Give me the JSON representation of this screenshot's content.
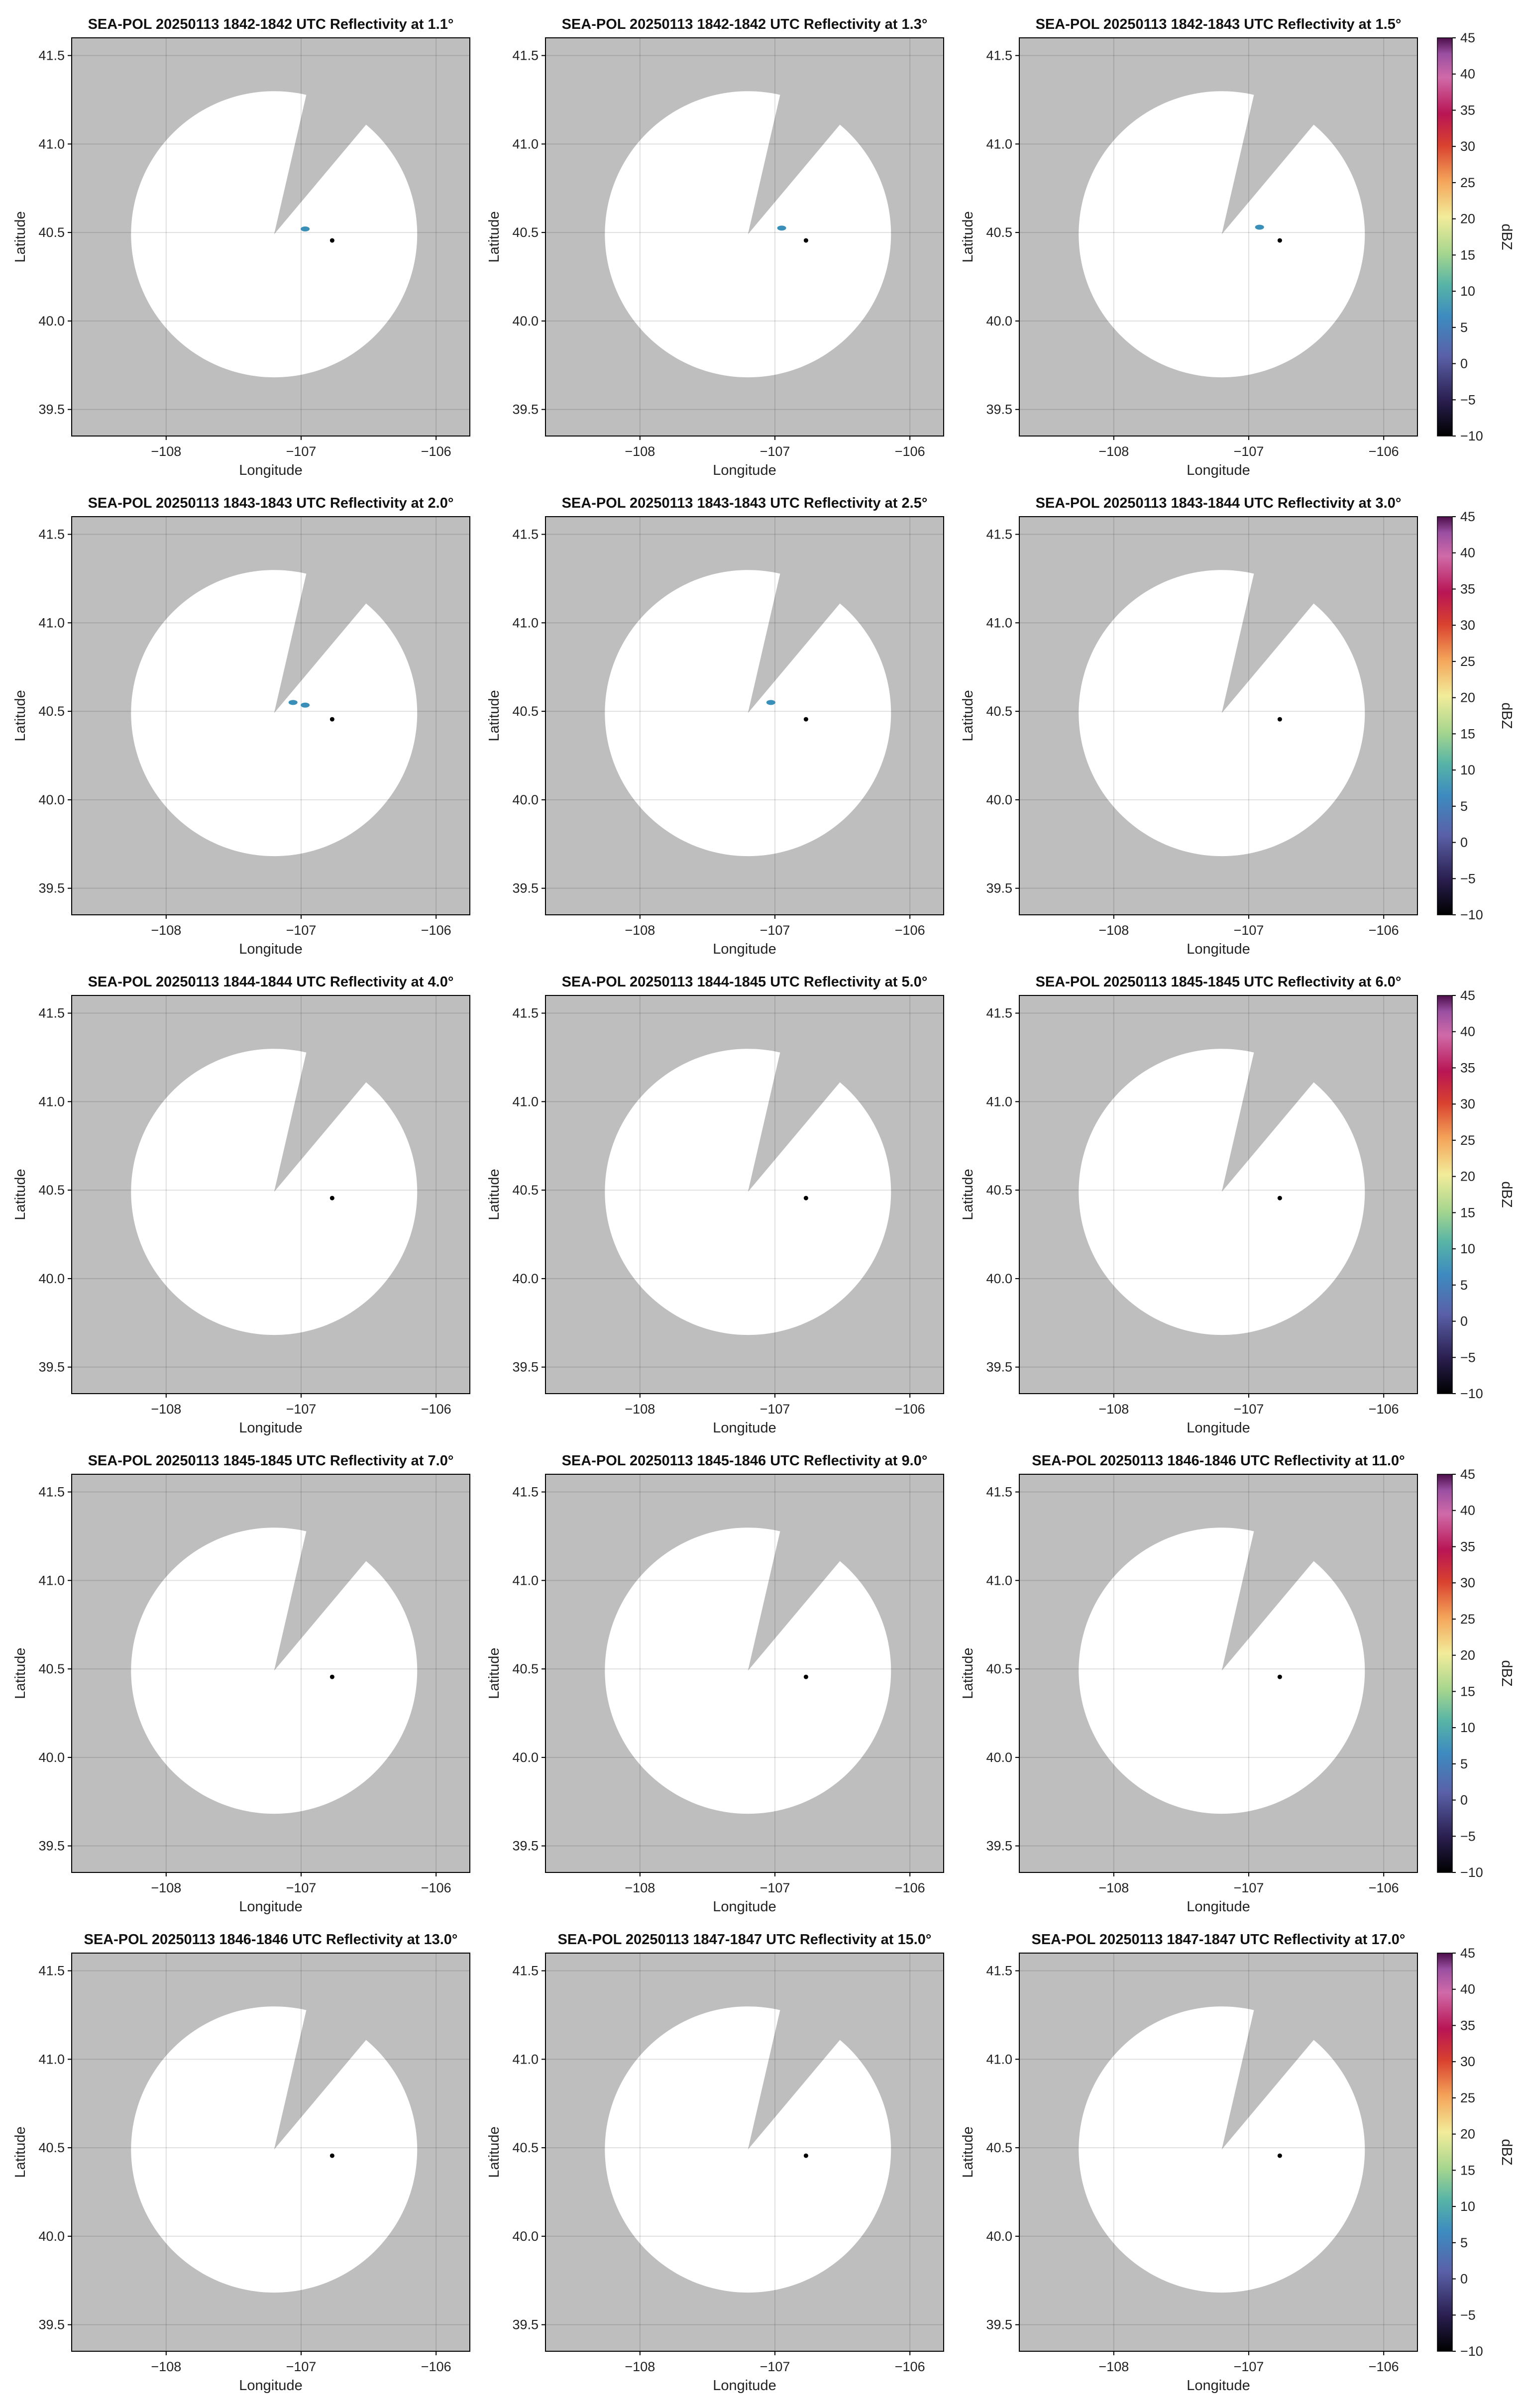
{
  "figure": {
    "panels": [
      {
        "title": "SEA-POL 20250113 1842-1842 UTC Reflectivity at 1.1°"
      },
      {
        "title": "SEA-POL 20250113 1842-1842 UTC Reflectivity at 1.3°"
      },
      {
        "title": "SEA-POL 20250113 1842-1843 UTC Reflectivity at 1.5°"
      },
      {
        "title": "SEA-POL 20250113 1843-1843 UTC Reflectivity at 2.0°"
      },
      {
        "title": "SEA-POL 20250113 1843-1843 UTC Reflectivity at 2.5°"
      },
      {
        "title": "SEA-POL 20250113 1843-1844 UTC Reflectivity at 3.0°"
      },
      {
        "title": "SEA-POL 20250113 1844-1844 UTC Reflectivity at 4.0°"
      },
      {
        "title": "SEA-POL 20250113 1844-1845 UTC Reflectivity at 5.0°"
      },
      {
        "title": "SEA-POL 20250113 1845-1845 UTC Reflectivity at 6.0°"
      },
      {
        "title": "SEA-POL 20250113 1845-1845 UTC Reflectivity at 7.0°"
      },
      {
        "title": "SEA-POL 20250113 1845-1846 UTC Reflectivity at 9.0°"
      },
      {
        "title": "SEA-POL 20250113 1846-1846 UTC Reflectivity at 11.0°"
      },
      {
        "title": "SEA-POL 20250113 1846-1846 UTC Reflectivity at 13.0°"
      },
      {
        "title": "SEA-POL 20250113 1847-1847 UTC Reflectivity at 15.0°"
      },
      {
        "title": "SEA-POL 20250113 1847-1847 UTC Reflectivity at 17.0°"
      }
    ],
    "xlabel": "Longitude",
    "ylabel": "Latitude",
    "x_ticks": [
      "−108",
      "−107",
      "−106"
    ],
    "y_ticks": [
      "39.5",
      "40.0",
      "40.5",
      "41.0",
      "41.5"
    ],
    "colorbar": {
      "label": "dBZ",
      "ticks": [
        "−10",
        "−5",
        "0",
        "5",
        "10",
        "15",
        "20",
        "25",
        "30",
        "35",
        "40",
        "45"
      ],
      "range": [
        -10,
        45
      ]
    },
    "colors": {
      "background": "#bebebe",
      "radar_coverage": "#ffffff",
      "site_marker": "#000000",
      "echo": "#3a8fb8"
    }
  },
  "chart_data": {
    "type": "heatmap",
    "xlim": [
      -108.7,
      -105.75
    ],
    "ylim": [
      39.35,
      41.6
    ],
    "x_tick_values": [
      -108,
      -107,
      -106
    ],
    "y_tick_values": [
      39.5,
      40.0,
      40.5,
      41.0,
      41.5
    ],
    "grid": true,
    "radar_center": {
      "lon": -107.2,
      "lat": 40.49
    },
    "site_marker": {
      "lon": -106.77,
      "lat": 40.455
    },
    "coverage_radius_deg": 1.06,
    "blocked_sector_deg": [
      13,
      40
    ],
    "colorbar_range_dBZ": [
      -10,
      45
    ],
    "echoes_approx_dBZ": [
      {
        "panel": 1,
        "lon": -106.97,
        "lat": 40.52,
        "dBZ": 7
      },
      {
        "panel": 2,
        "lon": -106.95,
        "lat": 40.525,
        "dBZ": 7
      },
      {
        "panel": 3,
        "lon": -106.92,
        "lat": 40.53,
        "dBZ": 7
      },
      {
        "panel": 4,
        "lon": -107.06,
        "lat": 40.55,
        "dBZ": 7
      },
      {
        "panel": 4,
        "lon": -106.97,
        "lat": 40.535,
        "dBZ": 6
      },
      {
        "panel": 5,
        "lon": -107.03,
        "lat": 40.55,
        "dBZ": 6
      }
    ]
  }
}
